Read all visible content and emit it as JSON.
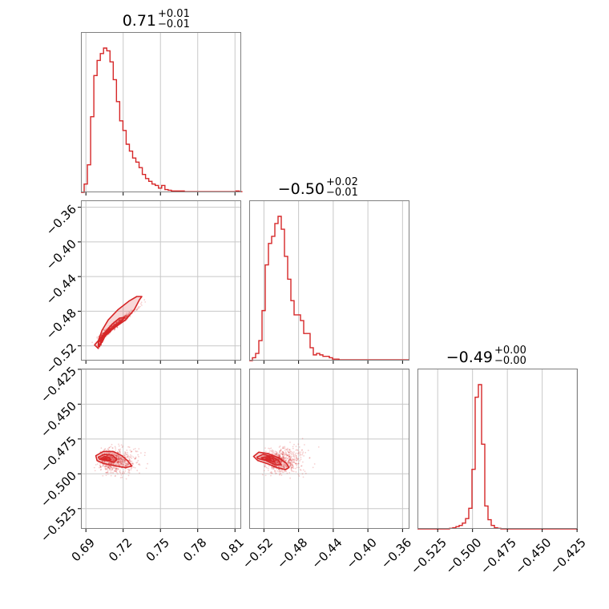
{
  "chart_data": {
    "type": "corner",
    "color": "#d62728",
    "parameters": [
      {
        "title": {
          "median": "0.71",
          "plus": "+0.01",
          "minus": "−0.01"
        },
        "range": [
          0.686,
          0.815
        ],
        "ticks": [
          0.69,
          0.72,
          0.75,
          0.78,
          0.81
        ],
        "tick_labels": [
          "0.69",
          "0.72",
          "0.75",
          "0.78",
          "0.81"
        ]
      },
      {
        "title": {
          "median": "−0.50",
          "plus": "+0.02",
          "minus": "−0.01"
        },
        "range": [
          -0.537,
          -0.352
        ],
        "ticks": [
          -0.52,
          -0.48,
          -0.44,
          -0.4,
          -0.36
        ],
        "tick_labels": [
          "−0.52",
          "−0.48",
          "−0.44",
          "−0.40",
          "−0.36"
        ]
      },
      {
        "title": {
          "median": "−0.49",
          "plus": "+0.00",
          "minus": "−0.00"
        },
        "range": [
          -0.5395,
          -0.4245
        ],
        "ticks": [
          -0.525,
          -0.5,
          -0.475,
          -0.45,
          -0.425
        ],
        "tick_labels": [
          "−0.525",
          "−0.500",
          "−0.475",
          "−0.450",
          "−0.425"
        ]
      }
    ],
    "histograms": [
      {
        "param": 0,
        "bin_start": 0.686,
        "bin_width": 0.0026,
        "counts": [
          0,
          0.6,
          2,
          5.5,
          8.5,
          9.6,
          10.1,
          10.5,
          10.3,
          9.5,
          8.2,
          6.6,
          5.2,
          4.5,
          3.5,
          3.0,
          2.5,
          2.2,
          1.8,
          1.3,
          1.0,
          0.8,
          0.6,
          0.5,
          0.3,
          0.5,
          0.2,
          0.15,
          0.1,
          0.1,
          0.1,
          0.1,
          0.05,
          0.05,
          0.05,
          0.05,
          0.05,
          0.05,
          0.05,
          0.05,
          0.05,
          0.05,
          0.05,
          0.05,
          0.05,
          0.05,
          0.05,
          0.05,
          0.1,
          0.05
        ]
      },
      {
        "param": 1,
        "bin_start": -0.537,
        "bin_width": 0.0037,
        "counts": [
          0,
          0.2,
          0.5,
          1.4,
          3.5,
          6.7,
          8.2,
          8.7,
          9.6,
          10.1,
          9.2,
          7.3,
          5.7,
          4.2,
          3.2,
          3.2,
          2.8,
          1.9,
          1.9,
          0.9,
          0.4,
          0.5,
          0.4,
          0.3,
          0.3,
          0.2,
          0.1,
          0.1,
          0.05,
          0.05,
          0.05,
          0.05,
          0.05,
          0.05,
          0.05,
          0.05,
          0.05,
          0.05,
          0.05,
          0.05,
          0.05,
          0.05,
          0.05,
          0.05,
          0.05,
          0.05,
          0.05,
          0.05,
          0.05,
          0.05
        ]
      },
      {
        "param": 2,
        "bin_start": -0.5395,
        "bin_width": 0.0023,
        "counts": [
          0,
          0,
          0,
          0,
          0,
          0,
          0,
          0,
          0,
          0,
          0.05,
          0.1,
          0.2,
          0.3,
          0.5,
          0.9,
          1.8,
          5.2,
          11.5,
          12.6,
          7.4,
          2.0,
          0.8,
          0.3,
          0.1,
          0.05,
          0,
          0,
          0,
          0,
          0,
          0,
          0,
          0,
          0,
          0,
          0,
          0,
          0,
          0,
          0,
          0,
          0,
          0,
          0,
          0,
          0,
          0,
          0,
          0
        ]
      }
    ],
    "joint": [
      {
        "x_param": 0,
        "y_param": 1,
        "center": [
          0.706,
          -0.505
        ],
        "contours": [
          [
            [
              0.7,
              -0.523
            ],
            [
              0.697,
              -0.519
            ],
            [
              0.703,
              -0.509
            ],
            [
              0.712,
              -0.5
            ],
            [
              0.722,
              -0.49
            ],
            [
              0.729,
              -0.478
            ],
            [
              0.733,
              -0.467
            ],
            [
              0.735,
              -0.463
            ],
            [
              0.731,
              -0.463
            ],
            [
              0.725,
              -0.468
            ],
            [
              0.716,
              -0.478
            ],
            [
              0.708,
              -0.49
            ],
            [
              0.703,
              -0.502
            ],
            [
              0.7,
              -0.514
            ],
            [
              0.7,
              -0.523
            ]
          ],
          [
            [
              0.701,
              -0.521
            ],
            [
              0.7,
              -0.516
            ],
            [
              0.705,
              -0.508
            ],
            [
              0.713,
              -0.499
            ],
            [
              0.719,
              -0.491
            ],
            [
              0.721,
              -0.487
            ],
            [
              0.717,
              -0.488
            ],
            [
              0.711,
              -0.495
            ],
            [
              0.705,
              -0.505
            ],
            [
              0.702,
              -0.514
            ],
            [
              0.701,
              -0.521
            ]
          ],
          [
            [
              0.702,
              -0.519
            ],
            [
              0.702,
              -0.514
            ],
            [
              0.706,
              -0.508
            ],
            [
              0.71,
              -0.503
            ],
            [
              0.711,
              -0.5
            ],
            [
              0.708,
              -0.501
            ],
            [
              0.705,
              -0.506
            ],
            [
              0.703,
              -0.512
            ],
            [
              0.702,
              -0.519
            ]
          ],
          [
            [
              0.703,
              -0.516
            ],
            [
              0.704,
              -0.511
            ],
            [
              0.706,
              -0.508
            ],
            [
              0.705,
              -0.51
            ],
            [
              0.703,
              -0.516
            ]
          ]
        ],
        "scatter_spread": [
          0.01,
          0.012
        ],
        "correlation": 0.95
      },
      {
        "x_param": 0,
        "y_param": 2,
        "center": [
          0.707,
          -0.4905
        ],
        "contours": [
          [
            [
              0.698,
              -0.487
            ],
            [
              0.704,
              -0.484
            ],
            [
              0.712,
              -0.484
            ],
            [
              0.719,
              -0.487
            ],
            [
              0.724,
              -0.491
            ],
            [
              0.727,
              -0.4945
            ],
            [
              0.722,
              -0.4955
            ],
            [
              0.715,
              -0.4945
            ],
            [
              0.709,
              -0.4935
            ],
            [
              0.704,
              -0.4925
            ],
            [
              0.699,
              -0.4905
            ],
            [
              0.698,
              -0.487
            ]
          ],
          [
            [
              0.7,
              -0.488
            ],
            [
              0.705,
              -0.486
            ],
            [
              0.711,
              -0.4865
            ],
            [
              0.715,
              -0.4895
            ],
            [
              0.713,
              -0.4915
            ],
            [
              0.706,
              -0.4905
            ],
            [
              0.701,
              -0.4895
            ],
            [
              0.7,
              -0.488
            ]
          ],
          [
            [
              0.702,
              -0.489
            ],
            [
              0.705,
              -0.4875
            ],
            [
              0.709,
              -0.4885
            ],
            [
              0.71,
              -0.49
            ],
            [
              0.706,
              -0.4905
            ],
            [
              0.702,
              -0.489
            ]
          ],
          [
            [
              0.704,
              -0.489
            ],
            [
              0.706,
              -0.4885
            ],
            [
              0.707,
              -0.4895
            ],
            [
              0.705,
              -0.4898
            ],
            [
              0.704,
              -0.489
            ]
          ]
        ],
        "scatter_spread": [
          0.011,
          0.0045
        ],
        "correlation": -0.4
      },
      {
        "x_param": 1,
        "y_param": 2,
        "center": [
          -0.508,
          -0.4905
        ],
        "contours": [
          [
            [
              -0.532,
              -0.4875
            ],
            [
              -0.526,
              -0.4845
            ],
            [
              -0.515,
              -0.4855
            ],
            [
              -0.503,
              -0.4885
            ],
            [
              -0.494,
              -0.4925
            ],
            [
              -0.491,
              -0.4955
            ],
            [
              -0.495,
              -0.497
            ],
            [
              -0.505,
              -0.4955
            ],
            [
              -0.517,
              -0.4925
            ],
            [
              -0.527,
              -0.4905
            ],
            [
              -0.532,
              -0.4875
            ]
          ],
          [
            [
              -0.528,
              -0.488
            ],
            [
              -0.521,
              -0.486
            ],
            [
              -0.511,
              -0.4875
            ],
            [
              -0.503,
              -0.4905
            ],
            [
              -0.5,
              -0.4935
            ],
            [
              -0.507,
              -0.4935
            ],
            [
              -0.518,
              -0.4905
            ],
            [
              -0.527,
              -0.489
            ],
            [
              -0.528,
              -0.488
            ]
          ],
          [
            [
              -0.523,
              -0.4885
            ],
            [
              -0.515,
              -0.4875
            ],
            [
              -0.509,
              -0.4895
            ],
            [
              -0.508,
              -0.4915
            ],
            [
              -0.514,
              -0.4905
            ],
            [
              -0.521,
              -0.4895
            ],
            [
              -0.523,
              -0.4885
            ]
          ],
          [
            [
              -0.518,
              -0.489
            ],
            [
              -0.514,
              -0.4885
            ],
            [
              -0.512,
              -0.4898
            ],
            [
              -0.516,
              -0.4898
            ],
            [
              -0.518,
              -0.489
            ]
          ]
        ],
        "scatter_spread": [
          0.016,
          0.0045
        ],
        "correlation": -0.55
      }
    ]
  }
}
